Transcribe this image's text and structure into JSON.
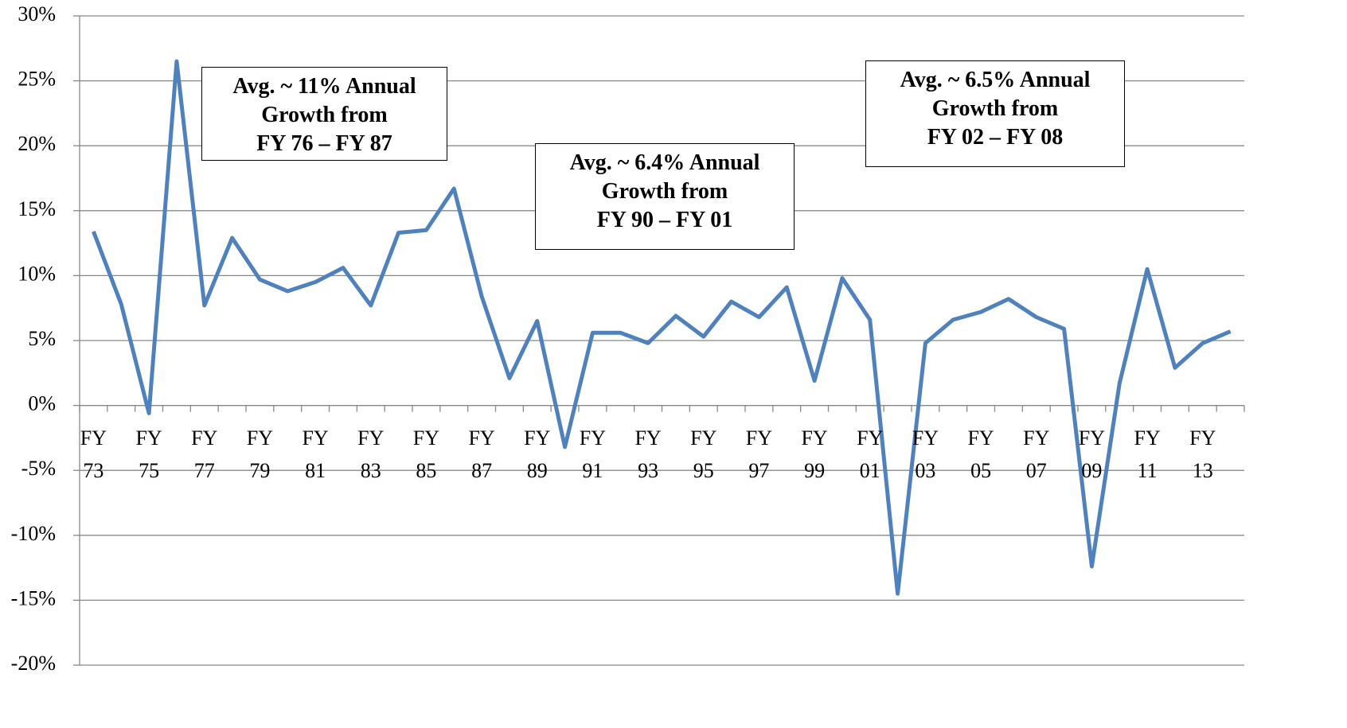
{
  "chart_data": {
    "type": "line",
    "categories": [
      "FY 73",
      null,
      "FY 75",
      null,
      "FY 77",
      null,
      "FY 79",
      null,
      "FY 81",
      null,
      "FY 83",
      null,
      "FY 85",
      null,
      "FY 87",
      null,
      "FY 89",
      null,
      "FY 91",
      null,
      "FY 93",
      null,
      "FY 95",
      null,
      "FY 97",
      null,
      "FY 99",
      null,
      "FY 01",
      null,
      "FY 03",
      null,
      "FY 05",
      null,
      "FY 07",
      null,
      "FY 09",
      null,
      "FY 11",
      null,
      "FY 13",
      null
    ],
    "series": [
      {
        "color": "#4f81bd",
        "values": [
          13.4,
          7.8,
          -0.6,
          26.5,
          7.7,
          12.9,
          9.7,
          8.8,
          9.5,
          10.6,
          7.7,
          13.3,
          13.5,
          16.7,
          8.4,
          2.1,
          6.5,
          -3.2,
          5.6,
          5.6,
          4.8,
          6.9,
          5.3,
          8.0,
          6.8,
          9.1,
          1.9,
          9.8,
          6.6,
          -14.5,
          4.8,
          6.6,
          7.2,
          8.2,
          6.8,
          5.9,
          -12.4,
          1.7,
          10.5,
          2.9,
          4.8,
          5.7
        ]
      }
    ],
    "ylim": [
      -20,
      30
    ],
    "yticks": [
      {
        "value": -20,
        "label": "-20%"
      },
      {
        "value": -15,
        "label": "-15%"
      },
      {
        "value": -10,
        "label": "-10%"
      },
      {
        "value": -5,
        "label": "-5%"
      },
      {
        "value": 0,
        "label": "0%"
      },
      {
        "value": 5,
        "label": "5%"
      },
      {
        "value": 10,
        "label": "10%"
      },
      {
        "value": 15,
        "label": "15%"
      },
      {
        "value": 20,
        "label": "20%"
      },
      {
        "value": 25,
        "label": "25%"
      },
      {
        "value": 30,
        "label": "30%"
      }
    ],
    "grid": true,
    "annotations": [
      {
        "lines": [
          "Avg. ~ 11% Annual",
          "Growth from",
          "FY 76 – FY 87"
        ]
      },
      {
        "lines": [
          "Avg. ~ 6.4% Annual",
          "Growth from",
          "FY 90 – FY 01"
        ]
      },
      {
        "lines": [
          "Avg. ~ 6.5% Annual",
          "Growth from",
          "FY 02 – FY 08"
        ]
      }
    ]
  }
}
